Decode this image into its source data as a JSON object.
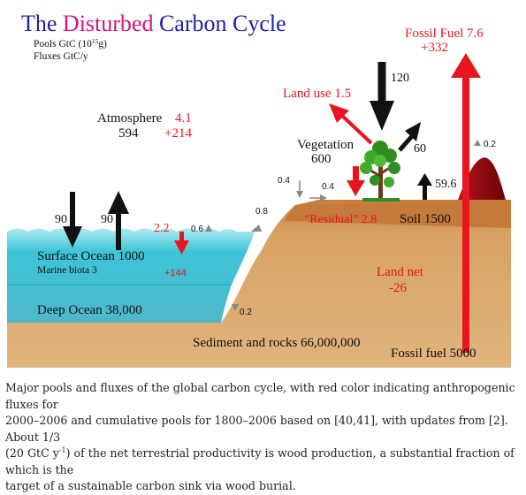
{
  "title": {
    "part1": "The ",
    "part2": "Disturbed",
    "part3": " Carbon Cycle"
  },
  "legend": {
    "pools_prefix": "Pools GtC (10",
    "pools_exp": "15",
    "pools_suffix": "g)",
    "fluxes": "Fluxes  GtC/y"
  },
  "fossil_fuel": {
    "label": "Fossil Fuel 7.6",
    "cumulative": "+332"
  },
  "land_use": "Land use 1.5",
  "flux_120": "120",
  "flux_60": "60",
  "flux_0_2_volcano": "0.2",
  "flux_59_6": "59.6",
  "atmosphere": {
    "label": "Atmosphere",
    "red": "4.1",
    "pool": "594",
    "cumulative": "+214"
  },
  "vegetation": {
    "label": "Vegetation",
    "pool": "600"
  },
  "flux_0_4_a": "0.4",
  "flux_0_4_b": "0.4",
  "flux_0_8": "0.8",
  "residual": "“Residual” 2.8",
  "soil": "Soil  1500",
  "ocean_flux_down": "90",
  "ocean_flux_up": "90",
  "ocean_uptake": "2.2",
  "flux_0_6": "0.6",
  "surface_ocean": {
    "label": "Surface Ocean  1000",
    "biota": "Marine biota 3",
    "cumulative": "+144"
  },
  "land_net": {
    "label": "Land net",
    "value": "-26"
  },
  "deep_ocean": "Deep Ocean  38,000",
  "flux_0_2_deep": "0.2",
  "sediment": "Sediment and rocks  66,000,000",
  "fossil_reserve": "Fossil fuel 5000",
  "colors": {
    "title_blue": "#1f1fa8",
    "title_magenta": "#d4147a",
    "anthropogenic_red": "#e8141e",
    "ocean": "#3cc4d8",
    "land": "#d59a52"
  },
  "caption": {
    "line1": "Major pools and fluxes of the global carbon cycle, with red color indicating anthropogenic fluxes for",
    "line2": "2000–2006 and cumulative pools for 1800–2006 based on [40,41], with updates from [2]. About 1/3",
    "line3_a": "(20 GtC y",
    "line3_exp": "-1",
    "line3_b": ") of the net terrestrial productivity is wood production, a substantial fraction of which is the",
    "line4": "target of a sustainable carbon sink via wood burial."
  }
}
